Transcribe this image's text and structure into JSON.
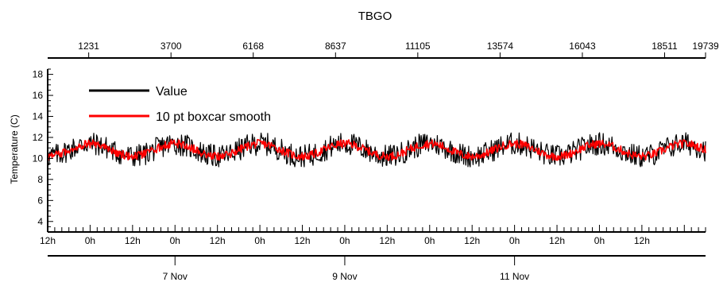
{
  "chart_data": {
    "type": "line",
    "title": "TBGO",
    "ylabel": "Temperature (C)",
    "ylim": [
      3,
      18.5
    ],
    "yticks": [
      4,
      6,
      8,
      10,
      12,
      14,
      16,
      18
    ],
    "top_axis": {
      "range": [
        0,
        19739
      ],
      "ticks": [
        1231,
        3700,
        6168,
        8637,
        11105,
        13574,
        16043,
        18511,
        19739
      ]
    },
    "time_axis": {
      "start": "2013-11-05T12:00",
      "end": "2013-11-13T06:00",
      "hour_labels": [
        {
          "t": "2013-11-05T12:00",
          "label": "12h"
        },
        {
          "t": "2013-11-06T00:00",
          "label": "0h"
        },
        {
          "t": "2013-11-06T12:00",
          "label": "12h"
        },
        {
          "t": "2013-11-07T00:00",
          "label": "0h"
        },
        {
          "t": "2013-11-07T12:00",
          "label": "12h"
        },
        {
          "t": "2013-11-08T00:00",
          "label": "0h"
        },
        {
          "t": "2013-11-08T12:00",
          "label": "12h"
        },
        {
          "t": "2013-11-09T00:00",
          "label": "0h"
        },
        {
          "t": "2013-11-09T12:00",
          "label": "12h"
        },
        {
          "t": "2013-11-10T00:00",
          "label": "0h"
        },
        {
          "t": "2013-11-10T12:00",
          "label": "12h"
        },
        {
          "t": "2013-11-11T00:00",
          "label": "0h"
        },
        {
          "t": "2013-11-11T12:00",
          "label": "12h"
        },
        {
          "t": "2013-11-12T00:00",
          "label": "0h"
        },
        {
          "t": "2013-11-12T12:00",
          "label": "12h"
        }
      ],
      "date_labels": [
        {
          "t": "2013-11-07T00:00",
          "label": "7 Nov"
        },
        {
          "t": "2013-11-09T00:00",
          "label": "9 Nov"
        },
        {
          "t": "2013-11-11T00:00",
          "label": "11 Nov"
        }
      ]
    },
    "series": [
      {
        "name": "Value",
        "color": "#000000",
        "mean": 10.8,
        "daily_amplitude": 0.6,
        "noise_halfwidth": 1.1,
        "range": [
          9.2,
          12.6
        ]
      },
      {
        "name": "10 pt boxcar smooth",
        "color": "#ff0000",
        "mean": 10.8,
        "daily_amplitude": 0.6,
        "noise_halfwidth": 0.4,
        "range": [
          9.8,
          11.9
        ]
      }
    ],
    "legend": "top-left",
    "grid": false
  }
}
